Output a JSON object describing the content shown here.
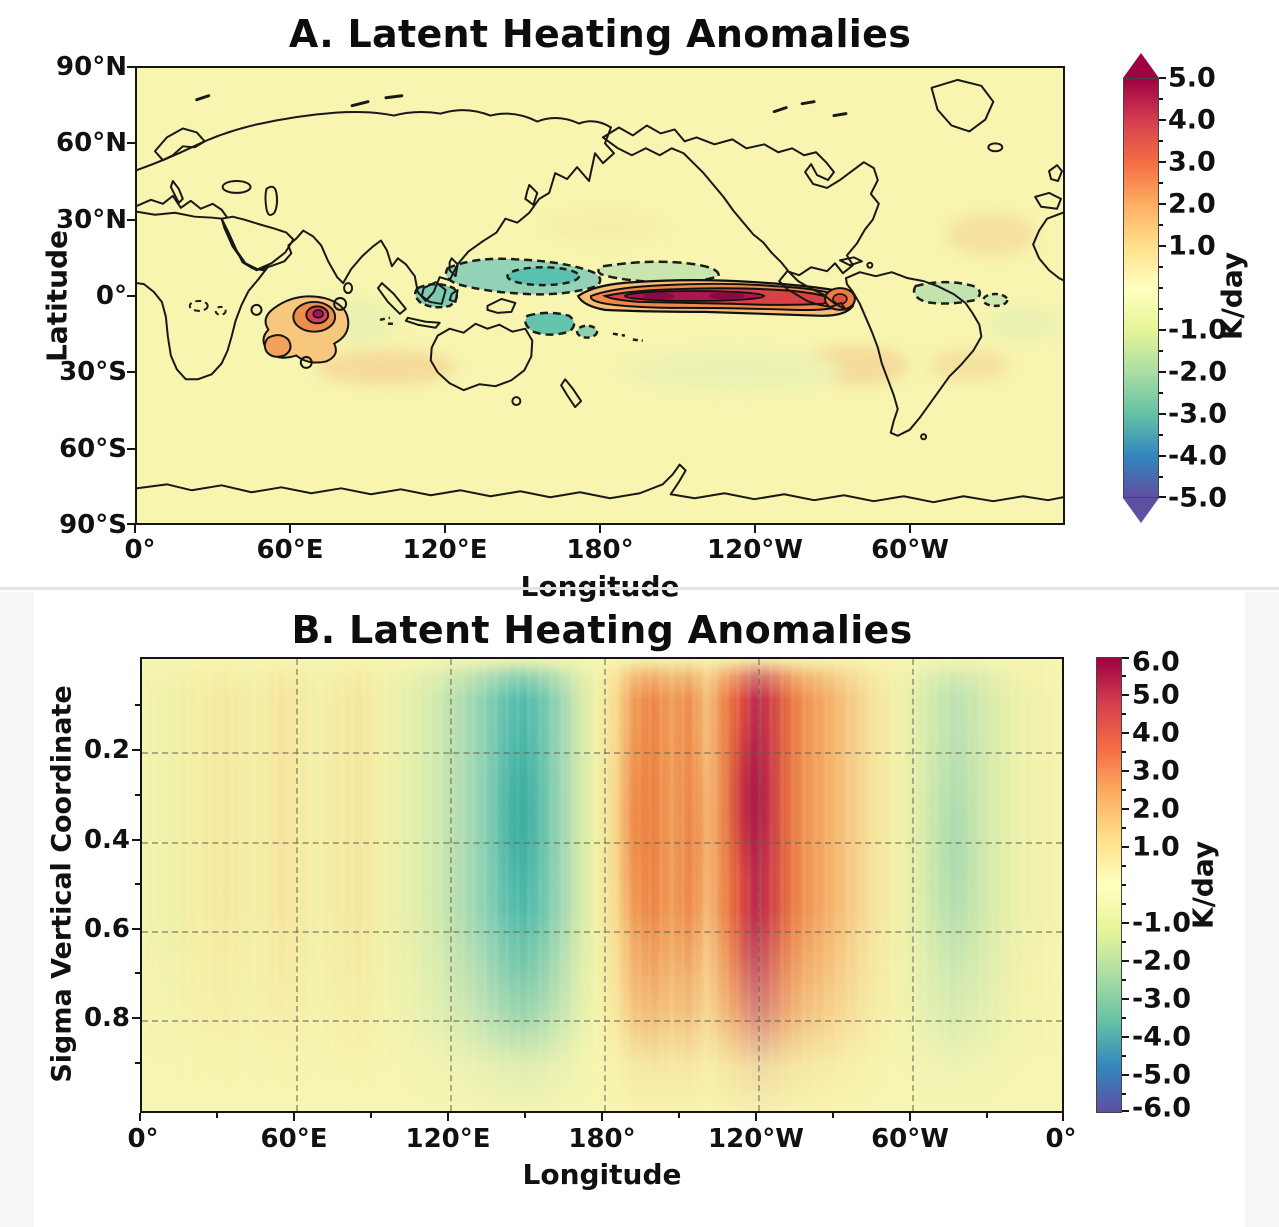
{
  "figure": {
    "background": "#ffffff",
    "field_background": "#f7f5b0"
  },
  "panel_a": {
    "title": "A. Latent Heating Anomalies",
    "xlabel": "Longitude",
    "ylabel": "Latitude",
    "x_ticks": [
      "0°",
      "60°E",
      "120°E",
      "180°",
      "120°W",
      "60°W"
    ],
    "y_ticks": [
      "90°N",
      "60°N",
      "30°N",
      "0°",
      "30°S",
      "60°S",
      "90°S"
    ],
    "colorbar": {
      "label": "K/day",
      "ticks": [
        "5.0",
        "4.0",
        "3.0",
        "2.0",
        "1.0",
        "-1.0",
        "-2.0",
        "-3.0",
        "-4.0",
        "-5.0"
      ],
      "range": [
        -5,
        5
      ],
      "extend": "both-arrows"
    }
  },
  "panel_b": {
    "title": "B. Latent Heating Anomalies",
    "xlabel": "Longitude",
    "ylabel": "Sigma Vertical Coordinate",
    "x_ticks": [
      "0°",
      "60°E",
      "120°E",
      "180°",
      "120°W",
      "60°W",
      "0°"
    ],
    "y_ticks": [
      "0.2",
      "0.4",
      "0.6",
      "0.8"
    ],
    "colorbar": {
      "label": "K/day",
      "ticks": [
        "6.0",
        "5.0",
        "4.0",
        "3.0",
        "2.0",
        "1.0",
        "-1.0",
        "-2.0",
        "-3.0",
        "-4.0",
        "-5.0",
        "-6.0"
      ],
      "range": [
        -6,
        6
      ]
    }
  },
  "chart_data": [
    {
      "type": "heatmap",
      "panel": "A",
      "title": "A. Latent Heating Anomalies",
      "xlabel": "Longitude",
      "ylabel": "Latitude",
      "x_range_deg": [
        0,
        360
      ],
      "y_range_deg": [
        -90,
        90
      ],
      "x_tick_values": [
        0,
        60,
        120,
        180,
        240,
        300
      ],
      "y_tick_values": [
        90,
        60,
        30,
        0,
        -30,
        -60,
        -90
      ],
      "colorbar_label": "K/day",
      "colorbar_range": [
        -5,
        5
      ],
      "colormap_stops": [
        "#9e0142",
        "#d53e4f",
        "#f46d43",
        "#fdae61",
        "#fee08b",
        "#ffffbf",
        "#e6f598",
        "#abdda4",
        "#66c2a5",
        "#3288bd",
        "#5e4fa2"
      ],
      "contour_style": {
        "positive": "solid-black",
        "negative": "dashed-black"
      },
      "features": [
        {
          "region": "southwest Indian Ocean near Madagascar",
          "lon": "45E-75E",
          "lat": "20S-0",
          "sign": "positive",
          "peak_K_day": 3.5
        },
        {
          "region": "equatorial central-eastern Pacific band",
          "lon": "170E-80W",
          "lat": "8S-3N",
          "sign": "positive",
          "peak_K_day": 5.0
        },
        {
          "region": "Maritime Continent and west Pacific",
          "lon": "120E-180",
          "lat": "0-12N",
          "sign": "negative",
          "peak_K_day": -3.0
        },
        {
          "region": "southwest Pacific",
          "lon": "150E-180",
          "lat": "8S-20S",
          "sign": "negative",
          "peak_K_day": -2.5
        },
        {
          "region": "north of equatorial Pacific band",
          "lon": "180-130W",
          "lat": "6N-12N",
          "sign": "negative",
          "peak_K_day": -1.5
        },
        {
          "region": "northern South America / Amazon",
          "lon": "75W-40W",
          "lat": "8S-2N",
          "sign": "negative",
          "peak_K_day": -1.5
        }
      ]
    },
    {
      "type": "heatmap",
      "panel": "B",
      "title": "B. Latent Heating Anomalies",
      "xlabel": "Longitude",
      "ylabel": "Sigma Vertical Coordinate",
      "x_range_deg": [
        0,
        360
      ],
      "y_range_sigma": [
        0,
        1
      ],
      "y_axis_inverted": true,
      "x_tick_values": [
        0,
        60,
        120,
        180,
        240,
        300,
        360
      ],
      "y_tick_values": [
        0.2,
        0.4,
        0.6,
        0.8
      ],
      "grid_on": true,
      "colorbar_label": "K/day",
      "colorbar_range": [
        -6,
        6
      ],
      "colormap_stops": [
        "#9e0142",
        "#d53e4f",
        "#f46d43",
        "#fdae61",
        "#fee08b",
        "#ffffbf",
        "#e6f598",
        "#abdda4",
        "#66c2a5",
        "#3288bd",
        "#5e4fa2"
      ],
      "grid_estimate": {
        "longitudes_deg_east": [
          0,
          15,
          30,
          45,
          60,
          75,
          90,
          105,
          120,
          135,
          150,
          165,
          180,
          195,
          210,
          225,
          240,
          255,
          270,
          285,
          300,
          315,
          330,
          345
        ],
        "sigma_levels": [
          0.2,
          0.4,
          0.6,
          0.8
        ],
        "values_K_day": [
          [
            -0.3,
            -0.5,
            0.3,
            0.5,
            0.2,
            0.3,
            0.8,
            -0.8,
            -1.5,
            -2.5,
            -3.5,
            -1.5,
            0.5,
            3.5,
            3.0,
            4.0,
            5.5,
            4.0,
            2.0,
            0.5,
            -0.5,
            -1.5,
            -1.0,
            -0.3
          ],
          [
            -0.3,
            -0.5,
            0.4,
            0.5,
            0.2,
            0.3,
            0.6,
            -0.8,
            -1.8,
            -3.0,
            -3.5,
            -1.5,
            0.5,
            3.5,
            3.0,
            4.5,
            6.0,
            4.0,
            1.5,
            0.3,
            -0.8,
            -1.8,
            -1.2,
            -0.3
          ],
          [
            -0.2,
            -0.4,
            0.3,
            0.4,
            0.2,
            0.2,
            0.5,
            -0.6,
            -1.5,
            -2.5,
            -3.0,
            -1.2,
            0.3,
            2.5,
            2.5,
            3.5,
            4.5,
            3.5,
            1.0,
            0.2,
            -0.6,
            -1.5,
            -1.0,
            -0.2
          ],
          [
            -0.1,
            -0.2,
            0.2,
            0.3,
            0.1,
            0.1,
            0.3,
            -0.4,
            -1.0,
            -1.5,
            -2.0,
            -0.8,
            0.2,
            1.5,
            1.5,
            2.0,
            2.5,
            2.0,
            0.5,
            0.1,
            -0.4,
            -0.8,
            -0.5,
            -0.1
          ]
        ]
      }
    }
  ]
}
